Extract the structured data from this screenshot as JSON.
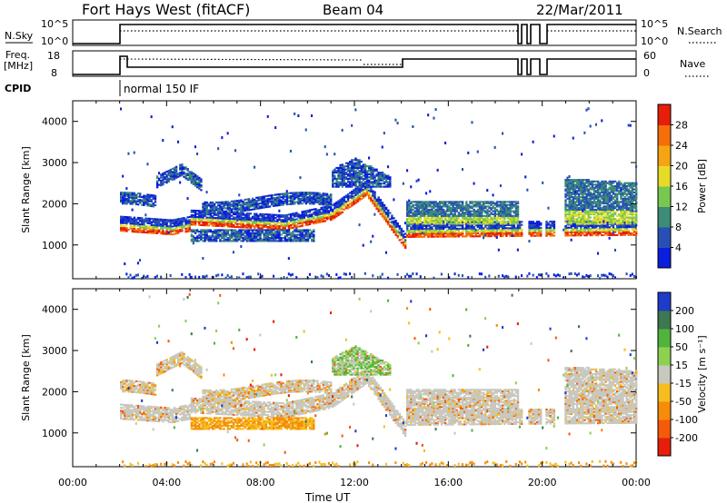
{
  "header": {
    "station": "Fort Hays West (fitACF)",
    "beam": "Beam 04",
    "date": "22/Mar/2011"
  },
  "panels": {
    "nsky_label": "N.Sky",
    "nsky_ticks": [
      "10^5",
      "10^0"
    ],
    "nsearch_label": "N.Search",
    "nsearch_ticks": [
      "10^5",
      "10^0"
    ],
    "freq_label": "Freq.",
    "freq_unit": "[MHz]",
    "freq_ticks": [
      "18",
      "8"
    ],
    "nave_label": "Nave",
    "nave_ticks": [
      "60",
      "0"
    ],
    "cpid_label": "CPID",
    "cpid_mode": "normal 150 IF"
  },
  "chart_data": [
    {
      "type": "heatmap",
      "name": "power",
      "ylabel": "Slant Range [km]",
      "xlabel": "Time UT",
      "ylim": [
        180,
        4500
      ],
      "yticks": [
        1000,
        2000,
        3000,
        4000
      ],
      "xticks": [
        "00:00",
        "04:00",
        "08:00",
        "12:00",
        "16:00",
        "20:00",
        "00:00"
      ],
      "colorbar": {
        "label": "Power [dB]",
        "ticks": [
          "4",
          "8",
          "12",
          "16",
          "20",
          "24",
          "28"
        ],
        "colors": [
          "#0a1edc",
          "#2850b4",
          "#3c8c78",
          "#78c850",
          "#e6dc28",
          "#f5a514",
          "#f56e0a",
          "#e61e0a"
        ]
      }
    },
    {
      "type": "heatmap",
      "name": "velocity",
      "ylabel": "Slant Range [km]",
      "xlabel": "Time UT",
      "ylim": [
        180,
        4500
      ],
      "yticks": [
        1000,
        2000,
        3000,
        4000
      ],
      "xticks": [
        "00:00",
        "04:00",
        "08:00",
        "12:00",
        "16:00",
        "20:00",
        "00:00"
      ],
      "colorbar": {
        "label": "Velocity [m s⁻¹]",
        "ticks": [
          "200",
          "100",
          "50",
          "15",
          "-15",
          "-50",
          "-100",
          "-200"
        ],
        "colors": [
          "#1e3cc8",
          "#3c7850",
          "#50b43c",
          "#8cd250",
          "#c8c8be",
          "#f5be1e",
          "#f58c0a",
          "#f55a0a",
          "#e61e0a"
        ]
      }
    }
  ],
  "axis": {
    "xlabel": "Time UT",
    "xticks": [
      "00:00",
      "04:00",
      "08:00",
      "12:00",
      "16:00",
      "20:00",
      "00:00"
    ]
  }
}
